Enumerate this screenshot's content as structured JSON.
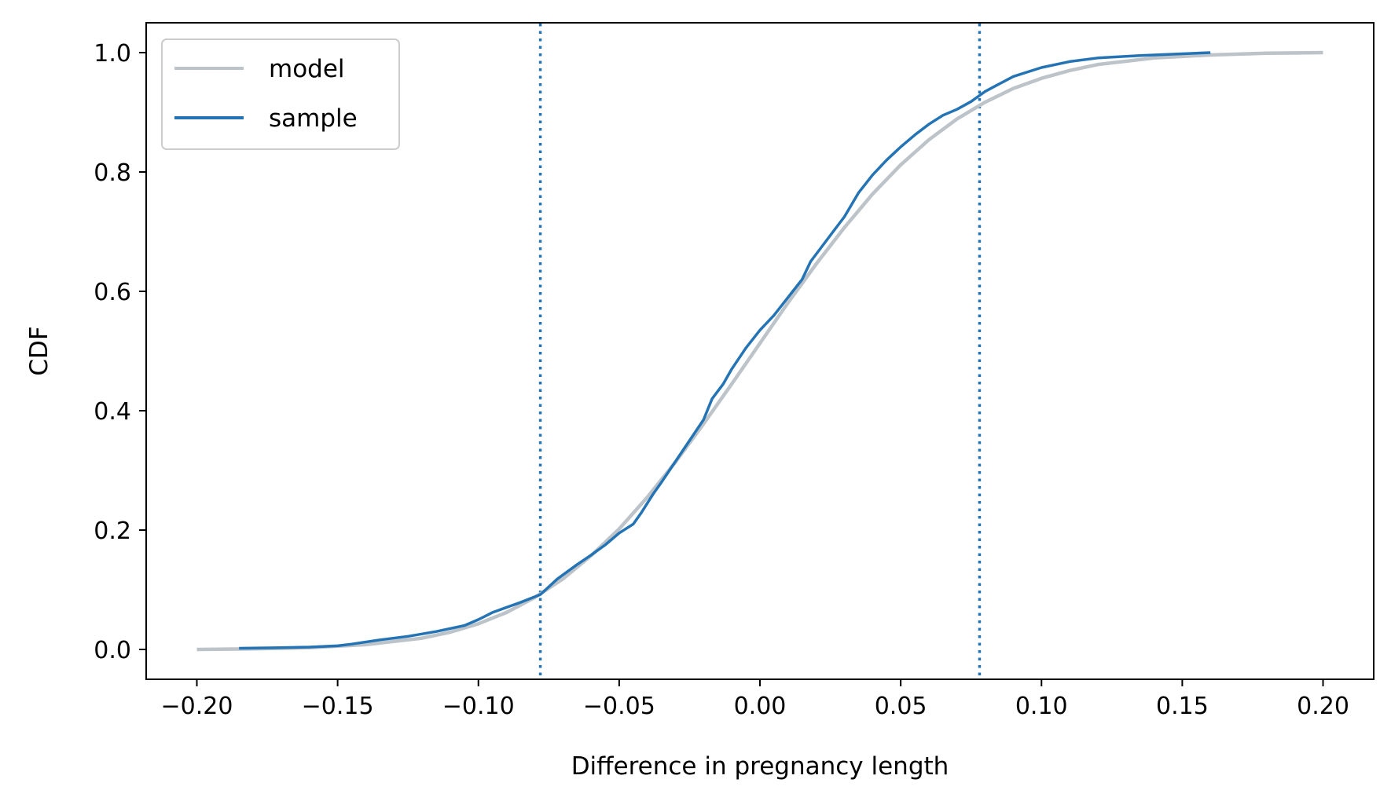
{
  "chart_data": {
    "type": "line",
    "title": "",
    "xlabel": "Difference in pregnancy length",
    "ylabel": "CDF",
    "xlim": [
      -0.218,
      0.218
    ],
    "ylim": [
      -0.05,
      1.05
    ],
    "xticks": [
      -0.2,
      -0.15,
      -0.1,
      -0.05,
      0.0,
      0.05,
      0.1,
      0.15,
      0.2
    ],
    "xtick_labels": [
      "−0.20",
      "−0.15",
      "−0.10",
      "−0.05",
      "0.00",
      "0.05",
      "0.10",
      "0.15",
      "0.20"
    ],
    "yticks": [
      0.0,
      0.2,
      0.4,
      0.6,
      0.8,
      1.0
    ],
    "ytick_labels": [
      "0.0",
      "0.2",
      "0.4",
      "0.6",
      "0.8",
      "1.0"
    ],
    "grid": false,
    "legend_position": "top-left",
    "series": [
      {
        "name": "model",
        "color": "#bcc3c9",
        "x": [
          -0.2,
          -0.18,
          -0.16,
          -0.14,
          -0.12,
          -0.11,
          -0.1,
          -0.09,
          -0.08,
          -0.07,
          -0.06,
          -0.05,
          -0.04,
          -0.03,
          -0.02,
          -0.01,
          0.0,
          0.01,
          0.02,
          0.03,
          0.04,
          0.05,
          0.06,
          0.07,
          0.08,
          0.09,
          0.1,
          0.11,
          0.12,
          0.14,
          0.16,
          0.18,
          0.2
        ],
        "y": [
          0.0,
          0.001,
          0.003,
          0.008,
          0.019,
          0.029,
          0.043,
          0.062,
          0.087,
          0.118,
          0.157,
          0.202,
          0.255,
          0.314,
          0.378,
          0.445,
          0.513,
          0.581,
          0.646,
          0.707,
          0.763,
          0.812,
          0.854,
          0.889,
          0.917,
          0.94,
          0.957,
          0.97,
          0.98,
          0.991,
          0.996,
          0.999,
          1.0
        ]
      },
      {
        "name": "sample",
        "color": "#2474b5",
        "x": [
          -0.185,
          -0.17,
          -0.16,
          -0.15,
          -0.145,
          -0.135,
          -0.125,
          -0.115,
          -0.105,
          -0.1,
          -0.095,
          -0.085,
          -0.078,
          -0.072,
          -0.065,
          -0.06,
          -0.055,
          -0.05,
          -0.045,
          -0.042,
          -0.038,
          -0.035,
          -0.03,
          -0.025,
          -0.02,
          -0.017,
          -0.013,
          -0.01,
          -0.005,
          0.0,
          0.005,
          0.01,
          0.015,
          0.018,
          0.022,
          0.026,
          0.03,
          0.035,
          0.04,
          0.045,
          0.05,
          0.055,
          0.06,
          0.065,
          0.07,
          0.075,
          0.08,
          0.09,
          0.1,
          0.11,
          0.12,
          0.135,
          0.15,
          0.16
        ],
        "y": [
          0.002,
          0.003,
          0.004,
          0.006,
          0.009,
          0.016,
          0.022,
          0.03,
          0.04,
          0.05,
          0.062,
          0.079,
          0.092,
          0.118,
          0.142,
          0.158,
          0.175,
          0.195,
          0.21,
          0.23,
          0.26,
          0.28,
          0.315,
          0.35,
          0.385,
          0.42,
          0.445,
          0.47,
          0.505,
          0.535,
          0.56,
          0.59,
          0.62,
          0.65,
          0.675,
          0.7,
          0.725,
          0.765,
          0.795,
          0.82,
          0.842,
          0.862,
          0.88,
          0.895,
          0.905,
          0.918,
          0.935,
          0.96,
          0.975,
          0.985,
          0.991,
          0.995,
          0.998,
          1.0
        ]
      }
    ],
    "vlines": [
      {
        "x": -0.078,
        "color": "#2474b5",
        "style": "dotted"
      },
      {
        "x": 0.078,
        "color": "#2474b5",
        "style": "dotted"
      }
    ]
  }
}
